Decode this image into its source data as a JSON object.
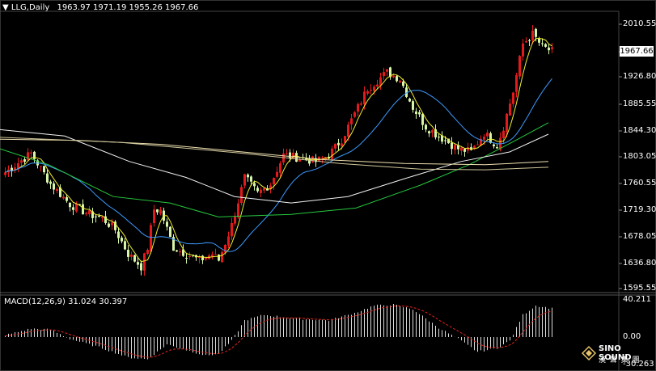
{
  "symbol": "LLG,Daily",
  "ohlc_header": "1963.97 1971.19 1955.26 1967.66",
  "current_price": "1967.66",
  "price_axis": {
    "ticks": [
      "2010.55",
      "1967.66",
      "1926.80",
      "1885.55",
      "1844.30",
      "1803.05",
      "1760.55",
      "1719.30",
      "1678.05",
      "1636.80",
      "1595.55"
    ],
    "min": 1595.55,
    "max": 2010.55
  },
  "macd": {
    "header": "MACD(12,26,9) 31.024 30.397",
    "ticks": [
      "40.211",
      "0.00",
      "-30.263"
    ],
    "min": -30.263,
    "max": 40.211
  },
  "logo": {
    "text": "SINO SOUND",
    "subtext": "漢 聲 集 團"
  },
  "colors": {
    "bull": "#e31a1c",
    "bear": "#d6f5a8",
    "ma5": "#f1ef2e",
    "ma20": "#3d9bff",
    "ma60": "#27c93f",
    "ma120": "#f2f2f2",
    "ma250": "#f0e0b0",
    "signal": "#e3241b",
    "hist": "#dcdcdc"
  }
}
